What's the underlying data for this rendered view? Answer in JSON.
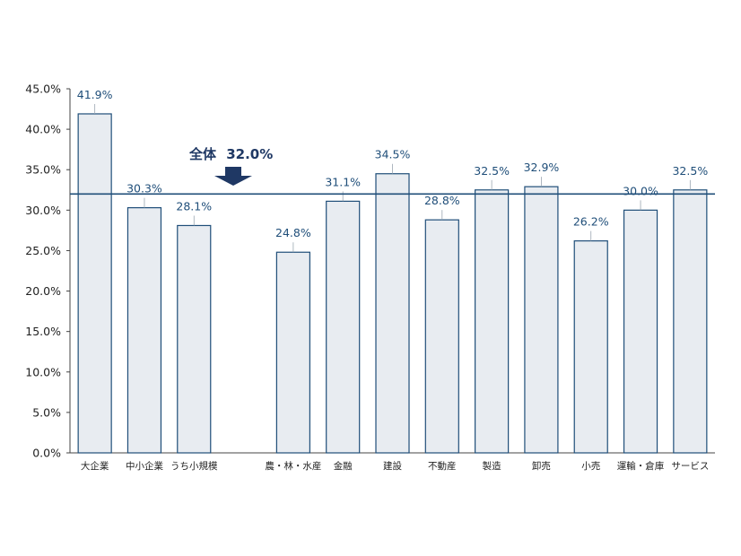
{
  "chart_data": {
    "type": "bar",
    "categories": [
      "大企業",
      "中小企業",
      "うち小規模",
      "",
      "農・林・水産",
      "金融",
      "建設",
      "不動産",
      "製造",
      "卸売",
      "小売",
      "運輸・倉庫",
      "サービス"
    ],
    "values": [
      41.9,
      30.3,
      28.1,
      null,
      24.8,
      31.1,
      34.5,
      28.8,
      32.5,
      32.9,
      26.2,
      30.0,
      32.5
    ],
    "value_labels": [
      "41.9%",
      "30.3%",
      "28.1%",
      "",
      "24.8%",
      "31.1%",
      "34.5%",
      "28.8%",
      "32.5%",
      "32.9%",
      "26.2%",
      "30.0%",
      "32.5%"
    ],
    "ylim": [
      0,
      45
    ],
    "yticks": [
      0,
      5,
      10,
      15,
      20,
      25,
      30,
      35,
      40,
      45
    ],
    "ytick_labels": [
      "0.0%",
      "5.0%",
      "10.0%",
      "15.0%",
      "20.0%",
      "25.0%",
      "30.0%",
      "35.0%",
      "40.0%",
      "45.0%"
    ],
    "reference_line": {
      "value": 32.0,
      "label_prefix": "全体",
      "label_value": "32.0%"
    },
    "grid": false,
    "legend": "none",
    "colors": {
      "bar_fill": "#e8ecf1",
      "bar_stroke": "#1f4e79",
      "reference_line": "#1f4e79",
      "arrow": "#1f3864",
      "data_label": "#1f4e79"
    }
  }
}
